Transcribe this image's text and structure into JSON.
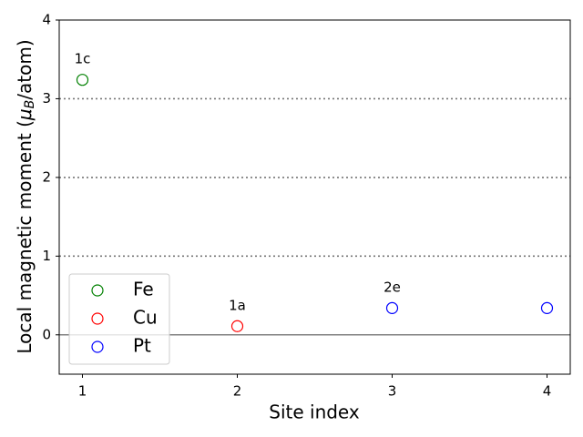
{
  "chart_data": {
    "type": "scatter",
    "xlabel": "Site index",
    "ylabel": [
      "Local magnetic moment (",
      "μ",
      "B",
      "/atom)"
    ],
    "xlim": [
      0.85,
      4.15
    ],
    "ylim": [
      -0.5,
      4
    ],
    "xticks": [
      1,
      2,
      3,
      4
    ],
    "yticks": [
      0,
      1,
      2,
      3,
      4
    ],
    "hlines": [
      {
        "y": 0,
        "style": "solid"
      },
      {
        "y": 1,
        "style": "dotted"
      },
      {
        "y": 2,
        "style": "dotted"
      },
      {
        "y": 3,
        "style": "dotted"
      }
    ],
    "legend": "lower left",
    "series": [
      {
        "name": "Fe",
        "color": "green",
        "x": [
          1
        ],
        "values": [
          3.24
        ]
      },
      {
        "name": "Cu",
        "color": "red",
        "x": [
          2
        ],
        "values": [
          0.11
        ]
      },
      {
        "name": "Pt",
        "color": "blue",
        "x": [
          3,
          4
        ],
        "values": [
          0.34,
          0.34
        ]
      }
    ],
    "annotations": [
      {
        "text": "1c",
        "x": 1,
        "y": 3.5
      },
      {
        "text": "1a",
        "x": 2,
        "y": 0.37
      },
      {
        "text": "2e",
        "x": 3,
        "y": 0.6
      }
    ]
  }
}
